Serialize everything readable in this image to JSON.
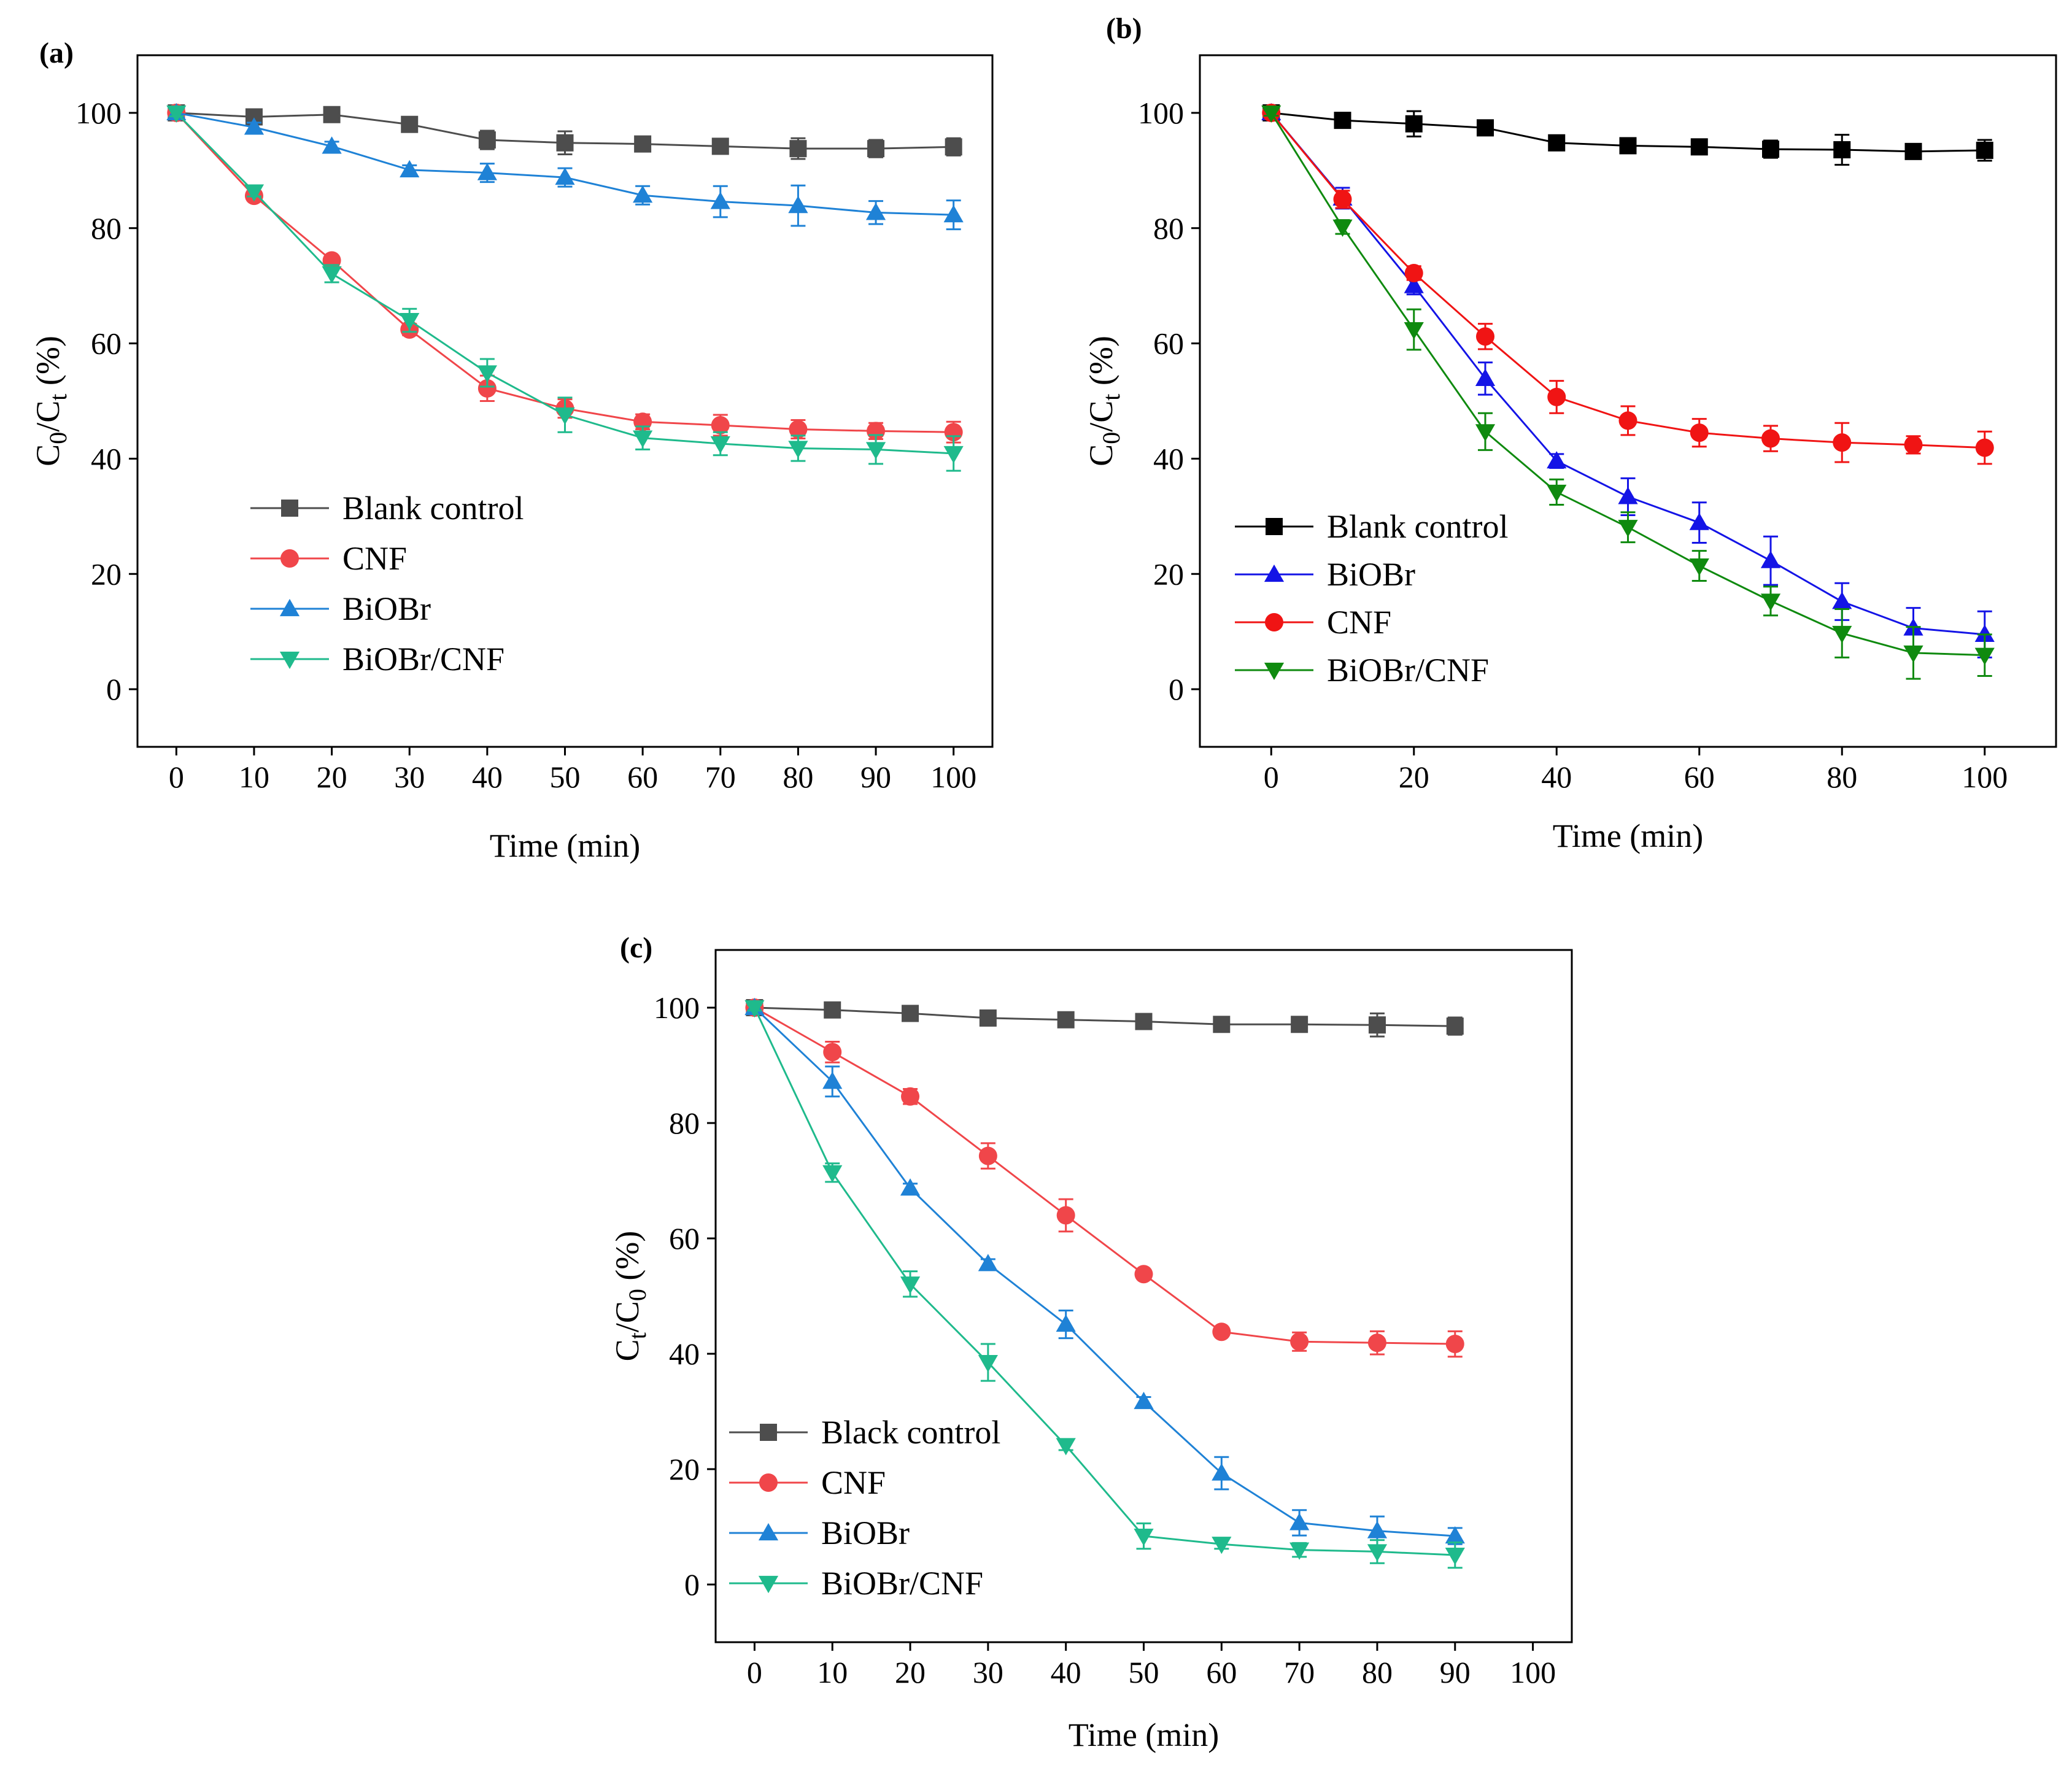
{
  "figure": {
    "background": "#ffffff"
  },
  "chart_data": [
    {
      "id": "a",
      "panel_label": "(a)",
      "type": "line",
      "title": "",
      "xlabel": "Time (min)",
      "ylabel": {
        "base": "C",
        "sub1": "0",
        "mid": "/C",
        "sub2": "t",
        "tail": " (%)"
      },
      "xlim": [
        -5,
        105
      ],
      "ylim": [
        -10,
        110
      ],
      "xticks": [
        0,
        10,
        20,
        30,
        40,
        50,
        60,
        70,
        80,
        90,
        100
      ],
      "yticks": [
        0,
        20,
        40,
        60,
        80,
        100
      ],
      "grid": false,
      "legend_position": "center-left",
      "x": [
        0,
        10,
        20,
        30,
        40,
        50,
        60,
        70,
        80,
        90,
        100
      ],
      "series": [
        {
          "name": "Blank control",
          "color": "#4d4d4d",
          "marker": "square",
          "values": [
            100,
            99.3,
            99.7,
            98,
            95.3,
            94.8,
            94.6,
            94.2,
            93.8,
            93.8,
            94.1
          ],
          "errors": [
            0.6,
            0.6,
            0.6,
            0.7,
            1.6,
            2.0,
            0.8,
            0.7,
            1.8,
            1.5,
            1.5
          ]
        },
        {
          "name": "CNF",
          "color": "#f0464a",
          "marker": "circle",
          "values": [
            100,
            85.6,
            74.4,
            62.4,
            52.2,
            48.7,
            46.4,
            45.8,
            45.1,
            44.8,
            44.6
          ],
          "errors": [
            0.6,
            0.8,
            0.8,
            1.0,
            2.2,
            1.6,
            1.3,
            1.8,
            1.6,
            1.4,
            1.8
          ]
        },
        {
          "name": "BiOBr",
          "color": "#1f82d6",
          "marker": "triangle-up",
          "values": [
            100,
            97.5,
            94.2,
            90.1,
            89.6,
            88.8,
            85.7,
            84.6,
            83.9,
            82.7,
            82.3
          ],
          "errors": [
            0.6,
            0.8,
            0.8,
            0.8,
            1.6,
            1.6,
            1.6,
            2.7,
            3.5,
            2.0,
            2.5
          ]
        },
        {
          "name": "BiOBr/CNF",
          "color": "#1fba8c",
          "marker": "triangle-down",
          "values": [
            100,
            86.3,
            72.1,
            64.0,
            54.9,
            47.6,
            43.6,
            42.6,
            41.8,
            41.6,
            40.9
          ],
          "errors": [
            0.6,
            0.8,
            1.5,
            2.0,
            2.4,
            3.0,
            2.0,
            2.0,
            2.2,
            2.5,
            3.0
          ]
        }
      ]
    },
    {
      "id": "b",
      "panel_label": "(b)",
      "type": "line",
      "title": "",
      "xlabel": "Time (min)",
      "ylabel": {
        "base": "C",
        "sub1": "0",
        "mid": "/C",
        "sub2": "t",
        "tail": " (%)"
      },
      "xlim": [
        -10,
        110
      ],
      "ylim": [
        -10,
        110
      ],
      "xticks": [
        0,
        20,
        40,
        60,
        80,
        100
      ],
      "yticks": [
        0,
        20,
        40,
        60,
        80,
        100
      ],
      "grid": false,
      "legend_position": "bottom-left",
      "x": [
        0,
        10,
        20,
        30,
        40,
        50,
        60,
        70,
        80,
        90,
        100
      ],
      "series": [
        {
          "name": "Blank control",
          "color": "#000000",
          "marker": "square",
          "values": [
            100,
            98.7,
            98.1,
            97.4,
            94.8,
            94.3,
            94.1,
            93.7,
            93.6,
            93.3,
            93.5
          ],
          "errors": [
            0.5,
            0.6,
            2.2,
            0.6,
            0.6,
            0.6,
            0.6,
            1.5,
            2.6,
            0.6,
            1.8
          ]
        },
        {
          "name": "BiOBr",
          "color": "#1414e6",
          "marker": "triangle-up",
          "values": [
            100,
            85.2,
            70.0,
            53.9,
            39.6,
            33.4,
            28.9,
            22.3,
            15.2,
            10.6,
            9.5
          ],
          "errors": [
            0.5,
            1.8,
            1.5,
            2.8,
            1.2,
            3.2,
            3.5,
            4.2,
            3.2,
            3.5,
            4.0
          ]
        },
        {
          "name": "CNF",
          "color": "#f01414",
          "marker": "circle",
          "values": [
            100,
            85.0,
            72.2,
            61.2,
            50.7,
            46.6,
            44.5,
            43.5,
            42.8,
            42.4,
            41.9
          ],
          "errors": [
            0.5,
            1.5,
            1.2,
            2.2,
            2.8,
            2.5,
            2.4,
            2.2,
            3.4,
            1.5,
            2.8
          ]
        },
        {
          "name": "BiOBr/CNF",
          "color": "#0f8a0f",
          "marker": "triangle-down",
          "values": [
            100,
            80.2,
            62.4,
            44.7,
            34.2,
            28.1,
            21.4,
            15.3,
            9.7,
            6.3,
            5.9
          ],
          "errors": [
            0.5,
            1.2,
            3.5,
            3.2,
            2.2,
            2.6,
            2.6,
            2.5,
            4.2,
            4.5,
            3.6
          ]
        }
      ]
    },
    {
      "id": "c",
      "panel_label": "(c)",
      "type": "line",
      "title": "",
      "xlabel": "Time (min)",
      "ylabel": {
        "base": "C",
        "sub1": "t",
        "mid": "/C",
        "sub2": "0",
        "tail": " (%)"
      },
      "xlim": [
        -5,
        105
      ],
      "ylim": [
        -10,
        110
      ],
      "xticks": [
        0,
        10,
        20,
        30,
        40,
        50,
        60,
        70,
        80,
        90,
        100
      ],
      "yticks": [
        0,
        20,
        40,
        60,
        80,
        100
      ],
      "grid": false,
      "legend_position": "bottom-left",
      "x": [
        0,
        10,
        20,
        30,
        40,
        50,
        60,
        70,
        80,
        90
      ],
      "series": [
        {
          "name": "Black  control",
          "color": "#4d4d4d",
          "marker": "square",
          "values": [
            100,
            99.6,
            99.0,
            98.2,
            97.9,
            97.6,
            97.1,
            97.1,
            97.0,
            96.8
          ],
          "errors": [
            0.5,
            0.5,
            0.6,
            0.6,
            0.6,
            0.6,
            1.2,
            0.8,
            2.0,
            1.5
          ]
        },
        {
          "name": "CNF",
          "color": "#f0464a",
          "marker": "circle",
          "values": [
            100,
            92.3,
            84.6,
            74.3,
            64.0,
            53.8,
            43.8,
            42.1,
            41.9,
            41.7
          ],
          "errors": [
            0.5,
            1.8,
            1.3,
            2.2,
            2.8,
            0.8,
            0.8,
            1.6,
            2.0,
            2.2
          ]
        },
        {
          "name": "BiOBr",
          "color": "#1f82d6",
          "marker": "triangle-up",
          "values": [
            100,
            87.2,
            68.7,
            55.6,
            45.1,
            31.7,
            19.3,
            10.7,
            9.3,
            8.4
          ],
          "errors": [
            0.5,
            2.6,
            0.8,
            0.8,
            2.4,
            0.8,
            2.8,
            2.2,
            2.5,
            1.4
          ]
        },
        {
          "name": "BiOBr/CNF",
          "color": "#1fba8c",
          "marker": "triangle-down",
          "values": [
            100,
            71.4,
            52.1,
            38.5,
            24.1,
            8.4,
            7.0,
            6.0,
            5.7,
            5.1
          ],
          "errors": [
            0.5,
            1.6,
            2.2,
            3.2,
            0.8,
            2.2,
            0.8,
            1.2,
            2.0,
            2.2
          ]
        }
      ]
    }
  ]
}
